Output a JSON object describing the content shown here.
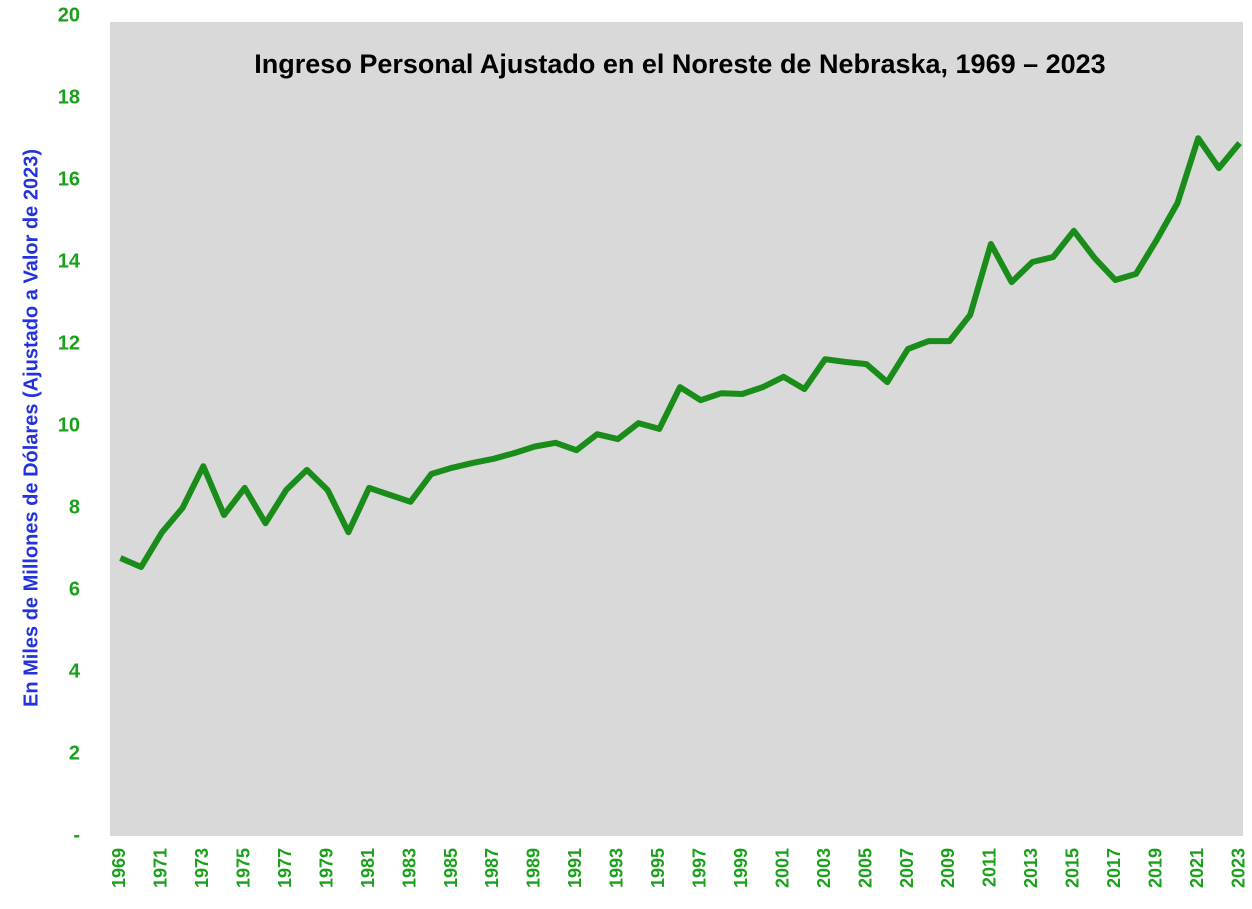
{
  "chart_data": {
    "type": "line",
    "title": "Ingreso Personal Ajustado en el Noreste de Nebraska, 1969 – 2023",
    "y_label": "En Miles de Millones de Dólares (Ajustado a Valor de 2023)",
    "categories": [
      "1969",
      null,
      "1971",
      null,
      "1973",
      null,
      "1975",
      null,
      "1977",
      null,
      "1979",
      null,
      "1981",
      null,
      "1983",
      null,
      "1985",
      null,
      "1987",
      null,
      "1989",
      null,
      "1991",
      null,
      "1993",
      null,
      "1995",
      null,
      "1997",
      null,
      "1999",
      null,
      "2001",
      null,
      "2003",
      null,
      "2005",
      null,
      "2007",
      null,
      "2009",
      null,
      "2011",
      null,
      "2013",
      null,
      "2015",
      null,
      "2017",
      null,
      "2019",
      null,
      "2021",
      null,
      "2023"
    ],
    "values": [
      6.78,
      6.56,
      7.4,
      8.0,
      9.02,
      7.83,
      8.49,
      7.63,
      8.44,
      8.93,
      8.44,
      7.41,
      8.49,
      8.32,
      8.15,
      8.83,
      8.98,
      9.1,
      9.2,
      9.34,
      9.5,
      9.59,
      9.41,
      9.8,
      9.68,
      10.07,
      9.93,
      10.95,
      10.63,
      10.8,
      10.78,
      10.95,
      11.2,
      10.9,
      11.63,
      11.56,
      11.51,
      11.07,
      11.88,
      12.07,
      12.07,
      12.71,
      14.44,
      13.51,
      14.0,
      14.12,
      14.76,
      14.1,
      13.56,
      13.71,
      14.54,
      15.44,
      17.02,
      16.29,
      16.9
    ],
    "color": "#1a8c1a",
    "ylim": [
      0,
      20
    ],
    "yticks": [
      {
        "value": 0,
        "label": "-"
      },
      2,
      4,
      6,
      8,
      10,
      12,
      14,
      16,
      18,
      20
    ],
    "grid": false
  }
}
